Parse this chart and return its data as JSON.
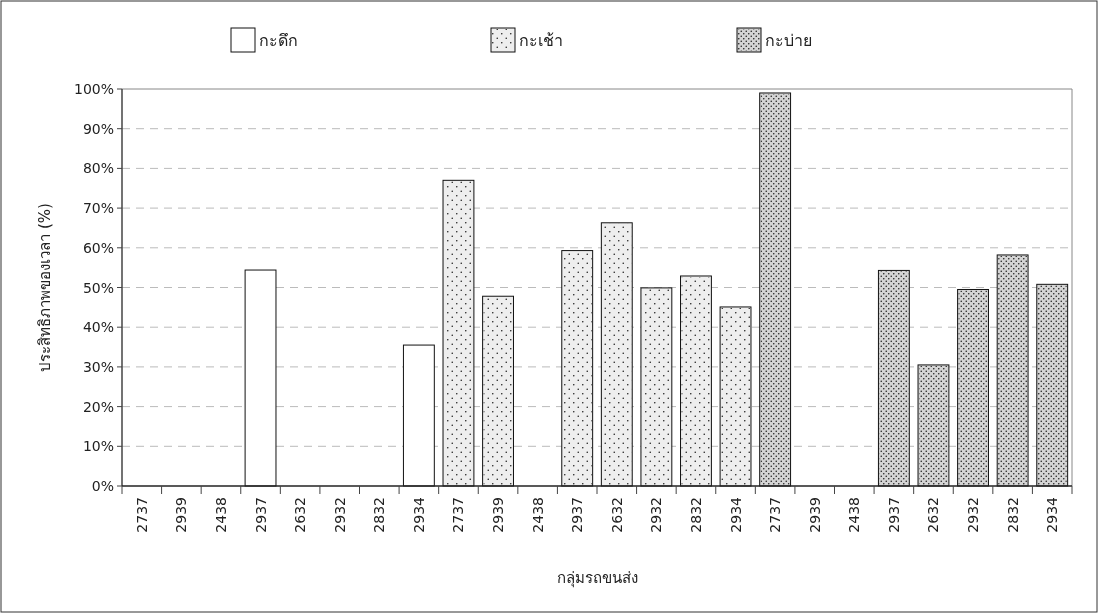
{
  "chart_data": {
    "type": "bar",
    "xlabel": "กลุ่มรถขนส่ง",
    "ylabel": "ประสิทธิภาพของเวลา (%)",
    "categories": [
      "2737",
      "2939",
      "2438",
      "2937",
      "2632",
      "2932",
      "2832",
      "2934",
      "2737",
      "2939",
      "2438",
      "2937",
      "2632",
      "2932",
      "2832",
      "2934",
      "2737",
      "2939",
      "2438",
      "2937",
      "2632",
      "2932",
      "2832",
      "2934"
    ],
    "series": [
      {
        "name": "กะดึก",
        "color": "#ffffff",
        "values": [
          0,
          0,
          0,
          54.4,
          0,
          0,
          0,
          35.5,
          null,
          null,
          null,
          null,
          null,
          null,
          null,
          null,
          null,
          null,
          null,
          null,
          null,
          null,
          null,
          null
        ]
      },
      {
        "name": "กะเช้า",
        "color": "#eeeeee",
        "values": [
          null,
          null,
          null,
          null,
          null,
          null,
          null,
          null,
          77.0,
          47.8,
          0,
          59.3,
          66.3,
          49.9,
          52.9,
          45.1,
          null,
          null,
          null,
          null,
          null,
          null,
          null,
          null
        ]
      },
      {
        "name": "กะบ่าย",
        "color": "#d4d4d4",
        "values": [
          null,
          null,
          null,
          null,
          null,
          null,
          null,
          null,
          null,
          null,
          null,
          null,
          null,
          null,
          null,
          null,
          99.0,
          0,
          0,
          54.3,
          30.5,
          49.5,
          58.2,
          50.8
        ]
      }
    ],
    "ylim": [
      0,
      100
    ],
    "yticks": [
      {
        "value": 0,
        "label": "0%"
      },
      {
        "value": 10,
        "label": "10%"
      },
      {
        "value": 20,
        "label": "20%"
      },
      {
        "value": 30,
        "label": "30%"
      },
      {
        "value": 40,
        "label": "40%"
      },
      {
        "value": 50,
        "label": "50%"
      },
      {
        "value": 60,
        "label": "60%"
      },
      {
        "value": 70,
        "label": "70%"
      },
      {
        "value": 80,
        "label": "80%"
      },
      {
        "value": 90,
        "label": "90%"
      },
      {
        "value": 100,
        "label": "100%"
      }
    ],
    "grid": "y",
    "legend": "top"
  }
}
